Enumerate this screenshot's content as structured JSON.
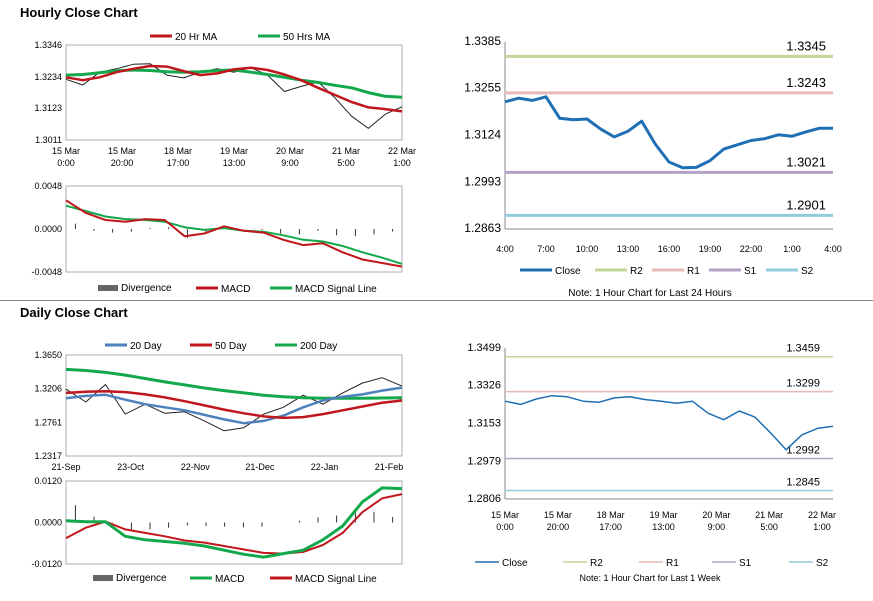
{
  "sections": {
    "hourly_title": "Hourly Close Chart",
    "daily_title": "Daily Close Chart"
  },
  "colors": {
    "close": "#1f6fb4",
    "ma20": "#c0171c",
    "ma50": "#12a84b",
    "day20": "#4f81bd",
    "r2": "#c4d79b",
    "r1": "#e6b9b8",
    "s1": "#b3a2c7",
    "s2": "#93cddd",
    "divergence": "#666666",
    "bars": "#222222"
  },
  "chart_data": [
    {
      "id": "hourly_price",
      "type": "line",
      "legend": [
        "20 Hr MA",
        "50 Hrs MA"
      ],
      "x_ticks": [
        "15 Mar\n0:00",
        "15 Mar\n20:00",
        "18 Mar\n17:00",
        "19 Mar\n13:00",
        "20 Mar\n9:00",
        "21 Mar\n5:00",
        "22 Mar\n1:00"
      ],
      "y_ticks": [
        "1.3346",
        "1.3234",
        "1.3123",
        "1.3011"
      ],
      "ylim": [
        1.3011,
        1.3346
      ],
      "series": [
        {
          "name": "20 Hr MA",
          "values": [
            1.3232,
            1.3222,
            1.3232,
            1.325,
            1.3262,
            1.3272,
            1.327,
            1.3254,
            1.324,
            1.3246,
            1.326,
            1.3266,
            1.3258,
            1.3242,
            1.3222,
            1.3195,
            1.317,
            1.3145,
            1.3126,
            1.312,
            1.3112
          ]
        },
        {
          "name": "50 Hrs MA",
          "values": [
            1.324,
            1.3242,
            1.3248,
            1.3255,
            1.3258,
            1.3256,
            1.3252,
            1.325,
            1.3252,
            1.3256,
            1.3258,
            1.325,
            1.3242,
            1.3232,
            1.3222,
            1.3214,
            1.3204,
            1.3195,
            1.3178,
            1.3165,
            1.3162
          ]
        }
      ],
      "close": [
        1.3225,
        1.3205,
        1.325,
        1.3262,
        1.3278,
        1.328,
        1.324,
        1.323,
        1.325,
        1.3262,
        1.325,
        1.3266,
        1.324,
        1.3182,
        1.32,
        1.3216,
        1.316,
        1.3095,
        1.3052,
        1.3102,
        1.3128
      ]
    },
    {
      "id": "hourly_macd",
      "type": "line",
      "legend": [
        "Divergence",
        "MACD",
        "MACD Signal Line"
      ],
      "y_ticks": [
        "0.0048",
        "0.0000",
        "-0.0048"
      ],
      "ylim": [
        -0.0048,
        0.0048
      ],
      "series": [
        {
          "name": "MACD",
          "values": [
            0.0032,
            0.0018,
            0.001,
            0.0008,
            0.0011,
            0.001,
            -0.0008,
            -0.0005,
            0.0003,
            -0.0002,
            -0.0004,
            -0.0012,
            -0.0018,
            -0.0016,
            -0.0026,
            -0.0034,
            -0.0038,
            -0.0042
          ]
        },
        {
          "name": "MACD Signal Line",
          "values": [
            0.0026,
            0.002,
            0.0014,
            0.0011,
            0.001,
            0.0008,
            0.0002,
            -0.0001,
            0.0001,
            -0.0002,
            -0.0003,
            -0.0007,
            -0.0012,
            -0.0014,
            -0.0019,
            -0.0026,
            -0.0032,
            -0.0039
          ]
        },
        {
          "name": "Divergence",
          "values": [
            0.0006,
            -0.0002,
            -0.0004,
            -0.0003,
            0.0001,
            0.0002,
            -0.001,
            -0.0004,
            0.0002,
            0.0,
            -0.0001,
            -0.0005,
            -0.0006,
            -0.0002,
            -0.0007,
            -0.0008,
            -0.0006,
            -0.0003
          ]
        }
      ]
    },
    {
      "id": "hourly_24h",
      "type": "line",
      "x_ticks": [
        "4:00",
        "7:00",
        "10:00",
        "13:00",
        "16:00",
        "19:00",
        "22:00",
        "1:00",
        "4:00"
      ],
      "y_ticks": [
        "1.3385",
        "1.3255",
        "1.3124",
        "1.2993",
        "1.2863"
      ],
      "ylim": [
        1.2863,
        1.3385
      ],
      "series": [
        {
          "name": "Close",
          "values": [
            1.3218,
            1.3228,
            1.3222,
            1.3232,
            1.3172,
            1.3168,
            1.317,
            1.3142,
            1.312,
            1.3136,
            1.3164,
            1.31,
            1.305,
            1.3034,
            1.3035,
            1.3054,
            1.3086,
            1.3098,
            1.311,
            1.3115,
            1.3126,
            1.3122,
            1.3134,
            1.3144,
            1.3144
          ]
        },
        {
          "name": "R2",
          "values": [
            1.3345
          ]
        },
        {
          "name": "R1",
          "values": [
            1.3243
          ]
        },
        {
          "name": "S1",
          "values": [
            1.3021
          ]
        },
        {
          "name": "S2",
          "values": [
            1.2901
          ]
        }
      ],
      "level_labels": [
        "1.3345",
        "1.3243",
        "1.3021",
        "1.2901"
      ],
      "legend": [
        "Close",
        "R2",
        "R1",
        "S1",
        "S2"
      ],
      "note": "Note: 1 Hour Chart for Last 24 Hours"
    },
    {
      "id": "daily_price",
      "type": "line",
      "legend": [
        "20 Day",
        "50 Day",
        "200 Day"
      ],
      "x_ticks": [
        "21-Sep",
        "23-Oct",
        "22-Nov",
        "21-Dec",
        "22-Jan",
        "21-Feb"
      ],
      "y_ticks": [
        "1.3650",
        "1.3206",
        "1.2761",
        "1.2317"
      ],
      "ylim": [
        1.2317,
        1.365
      ],
      "series": [
        {
          "name": "200 Day",
          "values": [
            1.346,
            1.3445,
            1.342,
            1.3385,
            1.334,
            1.3295,
            1.3255,
            1.3215,
            1.318,
            1.315,
            1.312,
            1.31,
            1.3085,
            1.308,
            1.308,
            1.308,
            1.3083,
            1.3085
          ]
        },
        {
          "name": "50 Day",
          "values": [
            1.315,
            1.3165,
            1.3172,
            1.316,
            1.313,
            1.309,
            1.304,
            1.2985,
            1.293,
            1.288,
            1.284,
            1.282,
            1.283,
            1.287,
            1.292,
            1.297,
            1.302,
            1.305
          ]
        },
        {
          "name": "20 Day",
          "values": [
            1.308,
            1.311,
            1.3125,
            1.306,
            1.3,
            1.296,
            1.292,
            1.286,
            1.28,
            1.275,
            1.278,
            1.285,
            1.296,
            1.305,
            1.31,
            1.313,
            1.318,
            1.322
          ]
        }
      ],
      "close": [
        1.32,
        1.303,
        1.326,
        1.287,
        1.3,
        1.288,
        1.29,
        1.278,
        1.265,
        1.269,
        1.287,
        1.296,
        1.312,
        1.3,
        1.315,
        1.328,
        1.335,
        1.324
      ]
    },
    {
      "id": "daily_macd",
      "type": "line",
      "legend": [
        "Divergence",
        "MACD",
        "MACD Signal Line"
      ],
      "y_ticks": [
        "0.0120",
        "0.0000",
        "-0.0120"
      ],
      "ylim": [
        -0.012,
        0.012
      ],
      "series": [
        {
          "name": "MACD",
          "values": [
            0.0005,
            0.0002,
            0.0002,
            -0.004,
            -0.005,
            -0.0055,
            -0.006,
            -0.0068,
            -0.008,
            -0.0092,
            -0.01,
            -0.009,
            -0.008,
            -0.005,
            -0.001,
            0.006,
            0.01,
            0.0098
          ]
        },
        {
          "name": "MACD Signal Line",
          "values": [
            -0.0045,
            -0.0015,
            0.0003,
            -0.002,
            -0.003,
            -0.004,
            -0.0052,
            -0.0058,
            -0.0068,
            -0.0078,
            -0.0088,
            -0.009,
            -0.0085,
            -0.0065,
            -0.003,
            0.003,
            0.007,
            0.0082
          ]
        },
        {
          "name": "Divergence",
          "values": [
            0.005,
            0.0017,
            -0.0001,
            -0.002,
            -0.002,
            -0.0015,
            -0.0008,
            -0.001,
            -0.0012,
            -0.0014,
            -0.0012,
            0.0,
            0.0005,
            0.0015,
            0.002,
            0.003,
            0.003,
            0.0016
          ]
        }
      ]
    },
    {
      "id": "daily_week",
      "type": "line",
      "x_ticks": [
        "15 Mar\n0:00",
        "15 Mar\n20:00",
        "18 Mar\n17:00",
        "19 Mar\n13:00",
        "20 Mar\n9:00",
        "21 Mar\n5:00",
        "22 Mar\n1:00"
      ],
      "y_ticks": [
        "1.3499",
        "1.3326",
        "1.3153",
        "1.2979",
        "1.2806"
      ],
      "ylim": [
        1.2806,
        1.3499
      ],
      "series": [
        {
          "name": "Close",
          "values": [
            1.3255,
            1.324,
            1.3265,
            1.328,
            1.3275,
            1.3255,
            1.325,
            1.327,
            1.3275,
            1.3262,
            1.3255,
            1.3245,
            1.3255,
            1.32,
            1.317,
            1.321,
            1.3182,
            1.311,
            1.3032,
            1.31,
            1.313,
            1.314
          ]
        },
        {
          "name": "R2",
          "values": [
            1.3459
          ]
        },
        {
          "name": "R1",
          "values": [
            1.3299
          ]
        },
        {
          "name": "S1",
          "values": [
            1.2992
          ]
        },
        {
          "name": "S2",
          "values": [
            1.2845
          ]
        }
      ],
      "level_labels": [
        "1.3459",
        "1.3299",
        "1.2992",
        "1.2845"
      ],
      "legend": [
        "Close",
        "R2",
        "R1",
        "S1",
        "S2"
      ],
      "note": "Note: 1 Hour Chart for Last 1 Week"
    }
  ]
}
